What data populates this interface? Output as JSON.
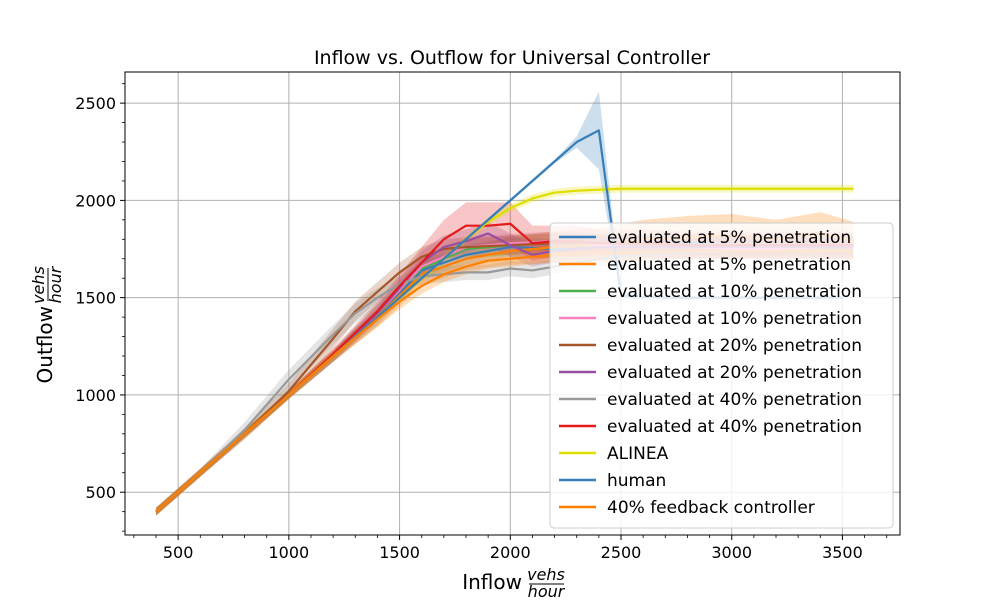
{
  "chart_data": {
    "type": "line",
    "title": "Inflow vs. Outflow for Universal Controller",
    "xlabel": "Inflow",
    "ylabel": "Outflow",
    "unit": {
      "numerator": "vehs",
      "denominator": "hour"
    },
    "xlim": [
      260,
      3760
    ],
    "ylim": [
      280,
      2660
    ],
    "xticks": [
      500,
      1000,
      1500,
      2000,
      2500,
      3000,
      3500
    ],
    "yticks": [
      500,
      1000,
      1500,
      2000,
      2500
    ],
    "grid": true,
    "legend_position": "lower-right",
    "series": [
      {
        "name": "evaluated at 5% penetration",
        "color": "#377eb8",
        "x": [
          400,
          600,
          800,
          1000,
          1200,
          1400,
          1600,
          1800,
          2000,
          2200,
          2400,
          2600,
          2800,
          3000,
          3200,
          3400,
          3550
        ],
        "y": [
          400,
          600,
          800,
          1000,
          1200,
          1400,
          1640,
          1720,
          1760,
          1750,
          1770,
          1770,
          1780,
          1770,
          1770,
          1760,
          1760
        ],
        "band": [
          20,
          20,
          20,
          20,
          30,
          40,
          50,
          50,
          50,
          50,
          50,
          50,
          50,
          50,
          50,
          50,
          50
        ]
      },
      {
        "name": "evaluated at 5% penetration",
        "color": "#ff7f00",
        "x": [
          400,
          600,
          800,
          1000,
          1200,
          1400,
          1600,
          1800,
          2000,
          2200,
          2400,
          2600,
          2800,
          3000,
          3200,
          3400,
          3550
        ],
        "y": [
          400,
          600,
          800,
          1000,
          1200,
          1400,
          1620,
          1700,
          1740,
          1760,
          1770,
          1800,
          1810,
          1820,
          1800,
          1830,
          1790
        ],
        "band": [
          20,
          20,
          20,
          20,
          30,
          50,
          60,
          60,
          70,
          80,
          90,
          100,
          110,
          110,
          100,
          110,
          100
        ]
      },
      {
        "name": "evaluated at 10% penetration",
        "color": "#4daf4a",
        "x": [
          400,
          600,
          800,
          1000,
          1200,
          1400,
          1600,
          1800,
          2000,
          2200,
          2400,
          2600,
          2800,
          3000,
          3200,
          3400,
          3550
        ],
        "y": [
          400,
          600,
          800,
          1000,
          1200,
          1430,
          1650,
          1750,
          1770,
          1790,
          1780,
          1770,
          1770,
          1760,
          1760,
          1770,
          1770
        ],
        "band": [
          20,
          20,
          20,
          20,
          30,
          40,
          50,
          50,
          50,
          50,
          50,
          50,
          50,
          50,
          50,
          50,
          50
        ]
      },
      {
        "name": "evaluated at 10% penetration",
        "color": "#f781bf",
        "x": [
          400,
          600,
          800,
          1000,
          1200,
          1400,
          1600,
          1800,
          2000,
          2200,
          2400,
          2600,
          2800,
          3000,
          3200,
          3400,
          3550
        ],
        "y": [
          400,
          600,
          800,
          1000,
          1200,
          1420,
          1660,
          1760,
          1780,
          1790,
          1770,
          1760,
          1760,
          1750,
          1750,
          1760,
          1760
        ],
        "band": [
          20,
          20,
          20,
          20,
          30,
          40,
          50,
          50,
          50,
          50,
          50,
          50,
          50,
          50,
          50,
          50,
          50
        ]
      },
      {
        "name": "evaluated at 20% penetration",
        "color": "#a65628",
        "x": [
          400,
          600,
          800,
          1000,
          1200,
          1300,
          1400,
          1500,
          1600,
          1700,
          1800,
          2000,
          2200,
          2400,
          2600,
          2800,
          3000,
          3200,
          3400,
          3550
        ],
        "y": [
          400,
          600,
          800,
          1020,
          1290,
          1430,
          1530,
          1630,
          1710,
          1750,
          1760,
          1770,
          1780,
          1780,
          1770,
          1770,
          1770,
          1770,
          1770,
          1760
        ],
        "band": [
          20,
          20,
          30,
          40,
          50,
          50,
          50,
          50,
          50,
          50,
          50,
          50,
          50,
          50,
          50,
          50,
          50,
          50,
          50,
          50
        ]
      },
      {
        "name": "evaluated at 20% penetration",
        "color": "#984ea3",
        "x": [
          400,
          600,
          800,
          1000,
          1200,
          1400,
          1600,
          1700,
          1800,
          1900,
          2000,
          2100,
          2200,
          2400,
          2600,
          2800,
          3000,
          3200,
          3400,
          3550
        ],
        "y": [
          400,
          600,
          800,
          1000,
          1200,
          1420,
          1680,
          1760,
          1790,
          1830,
          1770,
          1720,
          1740,
          1760,
          1760,
          1760,
          1760,
          1760,
          1760,
          1760
        ],
        "band": [
          20,
          20,
          20,
          20,
          30,
          40,
          60,
          60,
          60,
          60,
          60,
          60,
          60,
          60,
          60,
          60,
          60,
          60,
          60,
          60
        ]
      },
      {
        "name": "evaluated at 40% penetration",
        "color": "#999999",
        "x": [
          400,
          600,
          800,
          1000,
          1200,
          1300,
          1400,
          1500,
          1600,
          1700,
          1800,
          1900,
          2000,
          2100,
          2200,
          2400,
          2600,
          2800,
          3000,
          3200,
          3400,
          3550
        ],
        "y": [
          400,
          600,
          820,
          1080,
          1310,
          1420,
          1500,
          1570,
          1610,
          1620,
          1630,
          1630,
          1650,
          1640,
          1660,
          1700,
          1720,
          1730,
          1740,
          1740,
          1740,
          1740
        ],
        "band": [
          20,
          20,
          40,
          50,
          50,
          50,
          50,
          40,
          40,
          40,
          40,
          40,
          40,
          40,
          40,
          40,
          40,
          40,
          40,
          40,
          40,
          40
        ]
      },
      {
        "name": "evaluated at 40% penetration",
        "color": "#e41a1c",
        "x": [
          400,
          600,
          800,
          1000,
          1200,
          1400,
          1500,
          1600,
          1700,
          1800,
          1900,
          2000,
          2100,
          2200,
          2300,
          2400,
          2600,
          2800,
          3000,
          3200,
          3400,
          3550
        ],
        "y": [
          400,
          600,
          800,
          1000,
          1210,
          1430,
          1560,
          1680,
          1800,
          1870,
          1870,
          1880,
          1780,
          1790,
          1790,
          1780,
          1780,
          1770,
          1770,
          1770,
          1770,
          1770
        ],
        "band": [
          20,
          20,
          20,
          20,
          30,
          50,
          60,
          80,
          100,
          120,
          120,
          110,
          90,
          80,
          80,
          70,
          70,
          70,
          70,
          70,
          70,
          70
        ]
      },
      {
        "name": "ALINEA",
        "color": "#dede00",
        "x": [
          400,
          600,
          800,
          1000,
          1200,
          1400,
          1600,
          1800,
          1900,
          2000,
          2100,
          2200,
          2300,
          2500,
          2700,
          3000,
          3300,
          3550
        ],
        "y": [
          400,
          600,
          800,
          1000,
          1200,
          1400,
          1600,
          1800,
          1890,
          1960,
          2010,
          2040,
          2050,
          2060,
          2060,
          2060,
          2060,
          2060
        ],
        "band": [
          20,
          20,
          20,
          20,
          20,
          20,
          20,
          20,
          20,
          20,
          20,
          20,
          20,
          20,
          20,
          20,
          20,
          20
        ]
      },
      {
        "name": "human",
        "color": "#377eb8",
        "x": [
          400,
          600,
          800,
          1000,
          1200,
          1450,
          1600,
          1800,
          2000,
          2200,
          2300,
          2400,
          2500,
          2700,
          2900,
          3100,
          3300,
          3500
        ],
        "y": [
          400,
          600,
          800,
          1000,
          1200,
          1450,
          1600,
          1800,
          2000,
          2200,
          2300,
          2360,
          1510,
          1500,
          1500,
          1500,
          1500,
          1500
        ],
        "band": [
          10,
          10,
          10,
          10,
          10,
          10,
          10,
          10,
          10,
          10,
          30,
          200,
          15,
          10,
          10,
          10,
          10,
          10
        ]
      },
      {
        "name": "40% feedback controller",
        "color": "#ff7f00",
        "x": [
          400,
          600,
          800,
          1000,
          1200,
          1400,
          1500,
          1600,
          1700,
          1800,
          1900,
          2000,
          2200,
          2400,
          2600,
          2800,
          3000,
          3200,
          3400,
          3550
        ],
        "y": [
          400,
          600,
          800,
          1000,
          1200,
          1390,
          1480,
          1560,
          1620,
          1660,
          1690,
          1700,
          1720,
          1730,
          1730,
          1740,
          1740,
          1740,
          1740,
          1740
        ],
        "band": [
          20,
          20,
          20,
          20,
          30,
          40,
          40,
          40,
          40,
          40,
          40,
          40,
          40,
          40,
          40,
          40,
          40,
          40,
          40,
          40
        ]
      }
    ]
  }
}
